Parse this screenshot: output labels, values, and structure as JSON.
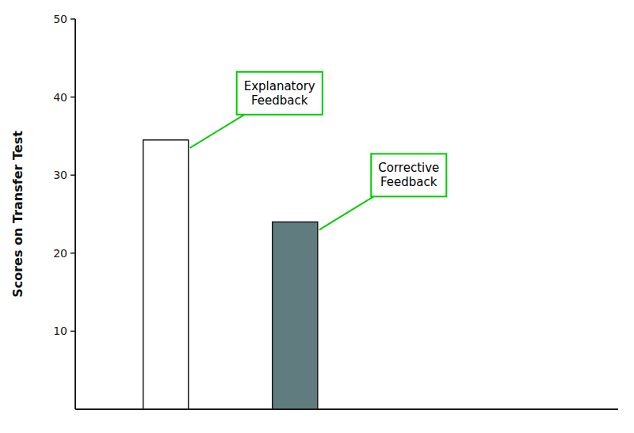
{
  "chart_data": {
    "type": "bar",
    "categories": [
      null,
      null
    ],
    "values": [
      34.5,
      24.0
    ],
    "colors": [
      "#ffffff",
      "#607c7e"
    ],
    "ylabel": "Scores on Transfer Test",
    "ylim": [
      0,
      50
    ],
    "yticks": [
      10,
      20,
      30,
      40,
      50
    ],
    "tick_labels": "y",
    "annotations": [
      "Explanatory\nFeedback",
      "Corrective\nFeedback"
    ]
  }
}
